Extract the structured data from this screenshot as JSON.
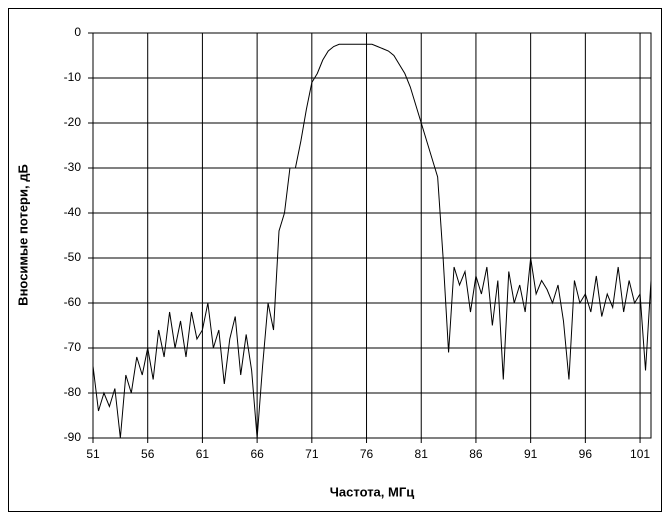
{
  "chart_data": {
    "type": "line",
    "x_label": "Частота, МГц",
    "y_label": "Вносимые потери, дБ",
    "x": [
      51,
      51.5,
      52,
      52.5,
      53,
      53.5,
      54,
      54.5,
      55,
      55.5,
      56,
      56.5,
      57,
      57.5,
      58,
      58.5,
      59,
      59.5,
      60,
      60.5,
      61,
      61.5,
      62,
      62.5,
      63,
      63.5,
      64,
      64.5,
      65,
      65.5,
      66,
      66.5,
      67,
      67.5,
      68,
      68.5,
      69,
      69.5,
      70,
      70.5,
      71,
      71.5,
      72,
      72.5,
      73,
      73.5,
      74,
      74.5,
      75,
      75.5,
      76,
      76.5,
      77,
      77.5,
      78,
      78.5,
      79,
      79.5,
      80,
      80.5,
      81,
      81.5,
      82,
      82.5,
      83,
      83.5,
      84,
      84.5,
      85,
      85.5,
      86,
      86.5,
      87,
      87.5,
      88,
      88.5,
      89,
      89.5,
      90,
      90.5,
      91,
      91.5,
      92,
      92.5,
      93,
      93.5,
      94,
      94.5,
      95,
      95.5,
      96,
      96.5,
      97,
      97.5,
      98,
      98.5,
      99,
      99.5,
      100,
      100.5,
      101,
      101.5,
      102
    ],
    "series": [
      {
        "color": "#000000",
        "values": [
          -74,
          -84,
          -80,
          -83,
          -79,
          -90,
          -76,
          -80,
          -72,
          -76,
          -70,
          -77,
          -66,
          -72,
          -62,
          -70,
          -64,
          -72,
          -62,
          -68,
          -66,
          -60,
          -70,
          -66,
          -78,
          -68,
          -63,
          -76,
          -67,
          -75,
          -90,
          -74,
          -60,
          -66,
          -44,
          -40,
          -30,
          -30,
          -24,
          -17,
          -11,
          -9,
          -6,
          -4,
          -3,
          -2.5,
          -2.5,
          -2.5,
          -2.5,
          -2.5,
          -2.5,
          -2.5,
          -3,
          -3.5,
          -4,
          -5,
          -7,
          -9,
          -12,
          -16,
          -20,
          -24,
          -28,
          -32,
          -50,
          -71,
          -52,
          -56,
          -53,
          -62,
          -54,
          -58,
          -52,
          -65,
          -55,
          -77,
          -53,
          -60,
          -56,
          -62,
          -50,
          -58,
          -55,
          -57,
          -60,
          -56,
          -64,
          -77,
          -55,
          -60,
          -58,
          -62,
          -54,
          -63,
          -58,
          -61,
          -52,
          -62,
          -55,
          -60,
          -58,
          -75,
          -55
        ]
      }
    ],
    "xlim": [
      51,
      102
    ],
    "xticks": [
      51,
      56,
      61,
      66,
      71,
      76,
      81,
      86,
      91,
      96,
      101
    ],
    "ylim": [
      -90,
      0
    ],
    "yticks": [
      -90,
      -80,
      -70,
      -60,
      -50,
      -40,
      -30,
      -20,
      -10,
      0
    ],
    "grid": true
  }
}
